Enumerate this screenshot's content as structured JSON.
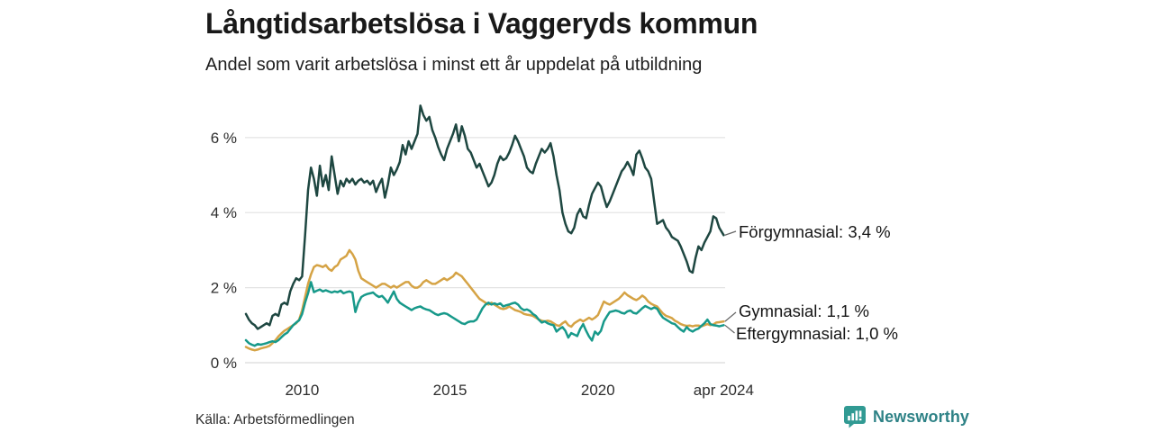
{
  "header": {
    "title": "Långtidsarbetslösa i Vaggeryds kommun",
    "subtitle": "Andel som varit arbetslösa i minst ett år uppdelat på utbildning"
  },
  "footer": {
    "source": "Källa: Arbetsförmedlingen",
    "brand_name": "Newsworthy",
    "brand_color": "#2e8286",
    "brand_icon": "bar-chart-speech-bubble-icon",
    "brand_icon_color": "#319a93"
  },
  "chart_data": {
    "type": "line",
    "title": "Långtidsarbetslösa i Vaggeryds kommun",
    "subtitle": "Andel som varit arbetslösa i minst ett år uppdelat på utbildning",
    "unit": "%",
    "x_unit": "decimal year (monthly data, Jan 2008 – Apr 2024)",
    "xlim": [
      2008.07,
      2024.3
    ],
    "ylim": [
      0,
      6.86
    ],
    "grid": "horizontal gridlines only",
    "legend": "direct end-of-line labels",
    "xticks": {
      "values": [
        2010,
        2015,
        2020,
        2024.25
      ],
      "labels": [
        "2010",
        "2015",
        "2020",
        "apr 2024"
      ]
    },
    "yticks": {
      "values": [
        0,
        2,
        4,
        6
      ],
      "labels": [
        "0 %",
        "2 %",
        "4 %",
        "6 %"
      ]
    },
    "grid_color": "#e4e4e4",
    "zero_line_color": "#d9d9d9",
    "axis_text_color": "#2e2e2e",
    "connector_color": "#666666",
    "x": [
      2008.1,
      2008.2,
      2008.3,
      2008.4,
      2008.5,
      2008.6,
      2008.7,
      2008.8,
      2008.9,
      2009.0,
      2009.1,
      2009.2,
      2009.3,
      2009.4,
      2009.5,
      2009.6,
      2009.7,
      2009.8,
      2009.9,
      2010.0,
      2010.1,
      2010.2,
      2010.3,
      2010.4,
      2010.5,
      2010.6,
      2010.7,
      2010.8,
      2010.9,
      2011.0,
      2011.1,
      2011.2,
      2011.3,
      2011.4,
      2011.5,
      2011.6,
      2011.7,
      2011.8,
      2011.9,
      2012.0,
      2012.1,
      2012.2,
      2012.3,
      2012.4,
      2012.5,
      2012.6,
      2012.7,
      2012.8,
      2012.9,
      2013.0,
      2013.1,
      2013.2,
      2013.3,
      2013.4,
      2013.5,
      2013.6,
      2013.7,
      2013.8,
      2013.9,
      2014.0,
      2014.1,
      2014.2,
      2014.3,
      2014.4,
      2014.5,
      2014.6,
      2014.7,
      2014.8,
      2014.9,
      2015.0,
      2015.1,
      2015.2,
      2015.3,
      2015.4,
      2015.5,
      2015.6,
      2015.7,
      2015.8,
      2015.9,
      2016.0,
      2016.1,
      2016.2,
      2016.3,
      2016.4,
      2016.5,
      2016.6,
      2016.7,
      2016.8,
      2016.9,
      2017.0,
      2017.1,
      2017.2,
      2017.3,
      2017.4,
      2017.5,
      2017.6,
      2017.7,
      2017.8,
      2017.9,
      2018.0,
      2018.1,
      2018.2,
      2018.3,
      2018.4,
      2018.5,
      2018.6,
      2018.7,
      2018.8,
      2018.9,
      2019.0,
      2019.1,
      2019.2,
      2019.3,
      2019.4,
      2019.5,
      2019.6,
      2019.7,
      2019.8,
      2019.9,
      2020.0,
      2020.1,
      2020.2,
      2020.3,
      2020.4,
      2020.5,
      2020.6,
      2020.7,
      2020.8,
      2020.9,
      2021.0,
      2021.1,
      2021.2,
      2021.3,
      2021.4,
      2021.5,
      2021.6,
      2021.7,
      2021.8,
      2021.9,
      2022.0,
      2022.1,
      2022.2,
      2022.3,
      2022.4,
      2022.5,
      2022.6,
      2022.7,
      2022.8,
      2022.9,
      2023.0,
      2023.1,
      2023.2,
      2023.3,
      2023.4,
      2023.5,
      2023.6,
      2023.7,
      2023.8,
      2023.9,
      2024.0,
      2024.1,
      2024.25
    ],
    "series": [
      {
        "name": "Förgymnasial",
        "color": "#1e4741",
        "end_value": 3.4,
        "values": [
          1.3,
          1.15,
          1.05,
          1.0,
          0.9,
          0.95,
          1.0,
          1.05,
          1.0,
          1.25,
          1.3,
          1.25,
          1.55,
          1.6,
          1.55,
          1.9,
          2.1,
          2.25,
          2.2,
          2.3,
          3.4,
          4.6,
          5.2,
          4.9,
          4.45,
          5.25,
          4.7,
          5.0,
          4.6,
          5.5,
          5.0,
          4.5,
          4.85,
          4.7,
          4.9,
          4.8,
          4.9,
          4.75,
          4.85,
          4.9,
          4.8,
          4.85,
          4.75,
          4.85,
          4.55,
          4.75,
          4.9,
          4.4,
          4.75,
          5.2,
          5.0,
          5.15,
          5.35,
          5.8,
          5.55,
          5.9,
          5.7,
          5.9,
          6.1,
          6.85,
          6.6,
          6.45,
          6.55,
          6.2,
          6.0,
          5.75,
          5.55,
          5.4,
          5.7,
          5.9,
          6.1,
          6.35,
          5.9,
          6.3,
          6.05,
          5.7,
          5.6,
          5.4,
          5.2,
          5.3,
          5.1,
          4.9,
          4.7,
          4.8,
          5.0,
          5.3,
          5.5,
          5.4,
          5.45,
          5.6,
          5.8,
          6.05,
          5.9,
          5.7,
          5.5,
          5.2,
          5.1,
          5.05,
          5.3,
          5.5,
          5.7,
          5.6,
          5.7,
          5.85,
          5.5,
          5.0,
          4.6,
          4.0,
          3.7,
          3.5,
          3.45,
          3.6,
          3.95,
          4.1,
          3.9,
          3.85,
          4.2,
          4.5,
          4.65,
          4.8,
          4.7,
          4.4,
          4.15,
          4.3,
          4.5,
          4.7,
          4.9,
          5.1,
          5.2,
          5.35,
          5.2,
          5.0,
          5.55,
          5.65,
          5.45,
          5.2,
          5.1,
          4.9,
          4.3,
          3.7,
          3.75,
          3.8,
          3.6,
          3.5,
          3.35,
          3.3,
          3.25,
          3.1,
          2.9,
          2.7,
          2.45,
          2.4,
          2.8,
          3.1,
          3.0,
          3.2,
          3.35,
          3.5,
          3.9,
          3.85,
          3.6,
          3.4
        ]
      },
      {
        "name": "Gymnasial",
        "color": "#d5a345",
        "end_value": 1.1,
        "values": [
          0.42,
          0.38,
          0.35,
          0.33,
          0.35,
          0.38,
          0.4,
          0.42,
          0.45,
          0.52,
          0.6,
          0.7,
          0.78,
          0.85,
          0.9,
          0.95,
          1.0,
          1.05,
          1.15,
          1.4,
          1.75,
          2.1,
          2.35,
          2.55,
          2.6,
          2.58,
          2.55,
          2.6,
          2.5,
          2.45,
          2.55,
          2.6,
          2.75,
          2.8,
          2.85,
          3.0,
          2.9,
          2.75,
          2.45,
          2.25,
          2.2,
          2.15,
          2.1,
          2.05,
          2.0,
          2.05,
          2.1,
          2.1,
          2.05,
          2.0,
          2.05,
          2.0,
          2.05,
          2.1,
          2.15,
          2.15,
          2.05,
          2.0,
          2.0,
          2.05,
          2.15,
          2.2,
          2.15,
          2.1,
          2.1,
          2.15,
          2.2,
          2.25,
          2.2,
          2.25,
          2.3,
          2.4,
          2.35,
          2.3,
          2.2,
          2.1,
          2.0,
          1.9,
          1.8,
          1.7,
          1.65,
          1.6,
          1.55,
          1.6,
          1.55,
          1.5,
          1.45,
          1.43,
          1.45,
          1.5,
          1.45,
          1.4,
          1.38,
          1.35,
          1.3,
          1.28,
          1.27,
          1.25,
          1.2,
          1.15,
          1.12,
          1.1,
          1.12,
          1.1,
          1.05,
          1.0,
          0.98,
          1.05,
          1.1,
          1.0,
          0.96,
          1.05,
          1.1,
          1.15,
          1.1,
          1.15,
          1.2,
          1.15,
          1.2,
          1.27,
          1.45,
          1.63,
          1.58,
          1.55,
          1.6,
          1.65,
          1.7,
          1.78,
          1.87,
          1.8,
          1.75,
          1.7,
          1.67,
          1.72,
          1.79,
          1.73,
          1.63,
          1.57,
          1.53,
          1.5,
          1.4,
          1.31,
          1.25,
          1.22,
          1.19,
          1.12,
          1.08,
          1.03,
          1.0,
          0.98,
          0.99,
          0.97,
          0.99,
          0.99,
          0.97,
          1.0,
          1.03,
          1.0,
          1.02,
          1.07,
          1.08,
          1.1
        ]
      },
      {
        "name": "Eftergymnasial",
        "color": "#17998a",
        "end_value": 1.0,
        "values": [
          0.6,
          0.52,
          0.48,
          0.45,
          0.5,
          0.48,
          0.5,
          0.52,
          0.55,
          0.57,
          0.55,
          0.6,
          0.68,
          0.75,
          0.8,
          0.9,
          1.0,
          1.07,
          1.13,
          1.3,
          1.6,
          1.85,
          2.15,
          1.88,
          1.92,
          1.95,
          1.9,
          1.93,
          1.9,
          1.87,
          1.9,
          1.88,
          1.92,
          1.85,
          1.88,
          1.9,
          1.87,
          1.35,
          1.6,
          1.75,
          1.8,
          1.83,
          1.85,
          1.87,
          1.8,
          1.75,
          1.78,
          1.7,
          1.6,
          1.75,
          1.9,
          1.7,
          1.6,
          1.55,
          1.5,
          1.45,
          1.4,
          1.45,
          1.48,
          1.5,
          1.45,
          1.42,
          1.4,
          1.35,
          1.3,
          1.27,
          1.3,
          1.32,
          1.3,
          1.25,
          1.2,
          1.15,
          1.1,
          1.05,
          1.03,
          1.08,
          1.1,
          1.1,
          1.15,
          1.3,
          1.45,
          1.55,
          1.6,
          1.55,
          1.58,
          1.55,
          1.58,
          1.5,
          1.53,
          1.55,
          1.58,
          1.6,
          1.55,
          1.45,
          1.4,
          1.42,
          1.38,
          1.3,
          1.25,
          1.15,
          1.07,
          1.1,
          1.05,
          1.02,
          1.0,
          0.83,
          0.9,
          0.95,
          0.85,
          0.67,
          0.79,
          0.75,
          0.71,
          0.9,
          1.03,
          0.85,
          0.7,
          0.59,
          0.83,
          0.75,
          0.85,
          1.1,
          1.23,
          1.35,
          1.37,
          1.39,
          1.37,
          1.33,
          1.31,
          1.37,
          1.39,
          1.33,
          1.31,
          1.38,
          1.45,
          1.51,
          1.47,
          1.43,
          1.47,
          1.44,
          1.3,
          1.2,
          1.15,
          1.1,
          1.05,
          1.03,
          0.95,
          0.88,
          0.83,
          0.95,
          0.87,
          0.83,
          0.88,
          0.91,
          0.98,
          1.05,
          1.15,
          1.03,
          1.0,
          0.99,
          0.97,
          1.0
        ]
      }
    ],
    "annotations": [
      {
        "series": "Förgymnasial",
        "text": "Förgymnasial: 3,4 %"
      },
      {
        "series": "Gymnasial",
        "text": "Gymnasial: 1,1 %"
      },
      {
        "series": "Eftergymnasial",
        "text": "Eftergymnasial: 1,0 %"
      }
    ]
  }
}
